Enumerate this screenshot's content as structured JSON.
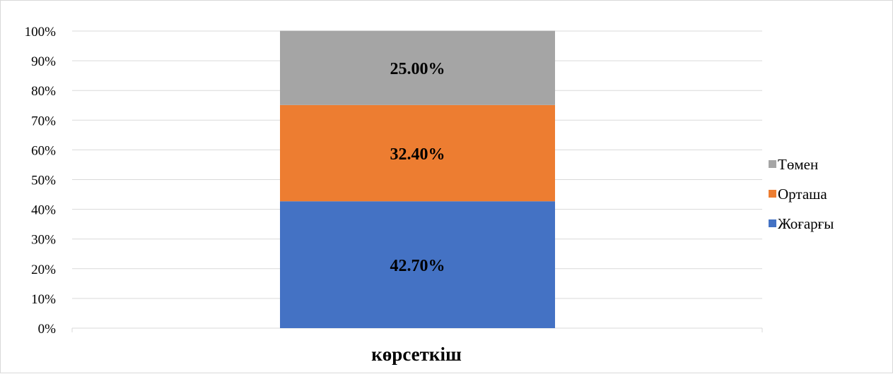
{
  "chart_data": {
    "type": "bar",
    "stacked": true,
    "categories": [
      "көрсеткіш"
    ],
    "xlabel": "көрсеткіш",
    "ylim": [
      0,
      100
    ],
    "y_ticks": [
      "0%",
      "10%",
      "20%",
      "30%",
      "40%",
      "50%",
      "60%",
      "70%",
      "80%",
      "90%",
      "100%"
    ],
    "grid": true,
    "legend_position": "right",
    "series": [
      {
        "name": "Жоғарғы",
        "values": [
          42.7
        ],
        "label": "42.70%",
        "color": "#4472C4"
      },
      {
        "name": "Орташа",
        "values": [
          32.4
        ],
        "label": "32.40%",
        "color": "#ED7D31"
      },
      {
        "name": "Төмен",
        "values": [
          25.0
        ],
        "label": "25.00%",
        "color": "#A5A5A5"
      }
    ]
  }
}
